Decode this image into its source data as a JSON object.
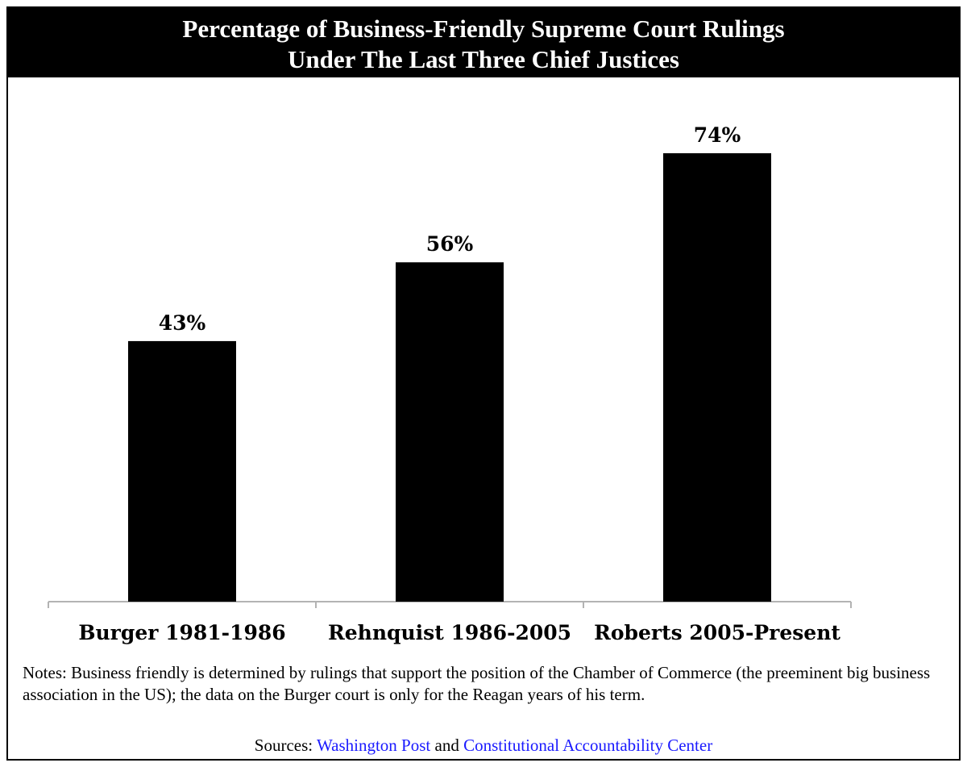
{
  "chart_data": {
    "type": "bar",
    "title_lines": [
      "Percentage of Business-Friendly Supreme Court Rulings",
      "Under The Last Three Chief Justices"
    ],
    "categories": [
      "Burger 1981-1986",
      "Rehnquist 1986-2005",
      "Roberts 2005-Present"
    ],
    "values": [
      43,
      56,
      74
    ],
    "value_labels": [
      "43%",
      "56%",
      "74%"
    ],
    "unit": "%",
    "ylim": [
      0,
      100
    ],
    "grid": false,
    "legend": "none",
    "bar_color": "#000000"
  },
  "notes": "Notes: Business friendly is determined by rulings that support the position of the Chamber of Commerce (the preeminent big business association in the US); the data on the Burger court is only for the Reagan years of his term.",
  "sources": {
    "prefix": "Sources:",
    "link1": "Washington Post",
    "conjunction": "and",
    "link2": "Constitutional Accountability Center",
    "link_color": "#1a1aff"
  }
}
